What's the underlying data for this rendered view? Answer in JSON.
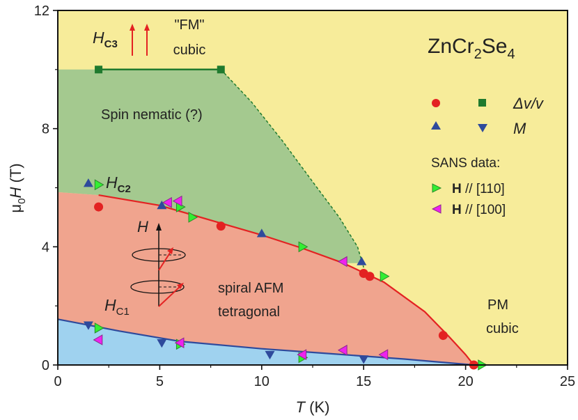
{
  "chart_data": {
    "type": "scatter",
    "compound": {
      "base": "ZnCr",
      "sub1": "2",
      "mid": "Se",
      "sub2": "4"
    },
    "x_axis": {
      "title_var": "T",
      "title_unit": " (K)",
      "range": [
        0,
        25
      ],
      "ticks": [
        "0",
        "5",
        "10",
        "15",
        "20",
        "25"
      ]
    },
    "y_axis": {
      "title_sym": "μ",
      "title_sub": "0",
      "title_var": "H",
      "title_unit": " (T)",
      "range": [
        0,
        12
      ],
      "ticks": [
        "0",
        "4",
        "8",
        "12"
      ]
    },
    "regions": {
      "fm_quote": "\"FM\"",
      "fm_cubic": "cubic",
      "spin_nematic": "Spin nematic (?)",
      "spiral1": "spiral AFM",
      "spiral2": "tetragonal",
      "pm1": "PM",
      "pm2": "cubic"
    },
    "field_labels": {
      "hc3": {
        "main": "H",
        "sub": "C3"
      },
      "hc2": {
        "main": "H",
        "sub": "C2"
      },
      "hc1": {
        "main": "H",
        "sub": "C1"
      },
      "h": "H"
    },
    "legend": {
      "dv": "Δv/v",
      "m": "M",
      "sans_title": "SANS data:",
      "sans110_bold": "H",
      "sans110_text": " // [110]",
      "sans100_bold": "H",
      "sans100_text": " // [100]"
    },
    "colors": {
      "yellow": "#f7ec9a",
      "green": "#a4c98f",
      "salmon": "#f0a48e",
      "blue": "#9fd2ef",
      "red": "#e32222",
      "dark_green": "#1f7a2e",
      "navy": "#2e4a9c",
      "bright_green": "#33ee33",
      "magenta": "#ee22ee"
    },
    "series": [
      {
        "marker": "circle",
        "color": "red",
        "points": [
          [
            2.0,
            5.35
          ],
          [
            8.0,
            4.7
          ],
          [
            15.0,
            3.1
          ],
          [
            15.3,
            3.0
          ],
          [
            18.9,
            1.0
          ],
          [
            20.4,
            0.0
          ]
        ]
      },
      {
        "marker": "square",
        "color": "dark_green",
        "points": [
          [
            2.0,
            10.0
          ],
          [
            8.0,
            10.0
          ]
        ]
      },
      {
        "marker": "triangle-up",
        "color": "navy",
        "points": [
          [
            1.5,
            6.15
          ],
          [
            5.1,
            5.4
          ],
          [
            10.0,
            4.45
          ],
          [
            14.9,
            3.5
          ]
        ]
      },
      {
        "marker": "triangle-down",
        "color": "navy",
        "points": [
          [
            1.5,
            1.35
          ],
          [
            5.1,
            0.75
          ],
          [
            10.4,
            0.35
          ],
          [
            15.0,
            0.2
          ]
        ]
      },
      {
        "marker": "triangle-right",
        "color": "bright_green",
        "points": [
          [
            2.0,
            6.1
          ],
          [
            6.0,
            5.35
          ],
          [
            6.6,
            5.0
          ],
          [
            12.0,
            4.0
          ],
          [
            16.0,
            3.0
          ],
          [
            2.0,
            1.25
          ],
          [
            6.0,
            0.7
          ],
          [
            12.0,
            0.25
          ],
          [
            20.8,
            0.0
          ]
        ]
      },
      {
        "marker": "triangle-left",
        "color": "magenta",
        "points": [
          [
            5.4,
            5.5
          ],
          [
            5.9,
            5.55
          ],
          [
            14.0,
            3.5
          ],
          [
            2.0,
            0.85
          ],
          [
            6.0,
            0.75
          ],
          [
            12.0,
            0.35
          ],
          [
            14.0,
            0.5
          ],
          [
            16.0,
            0.35
          ]
        ]
      }
    ]
  }
}
